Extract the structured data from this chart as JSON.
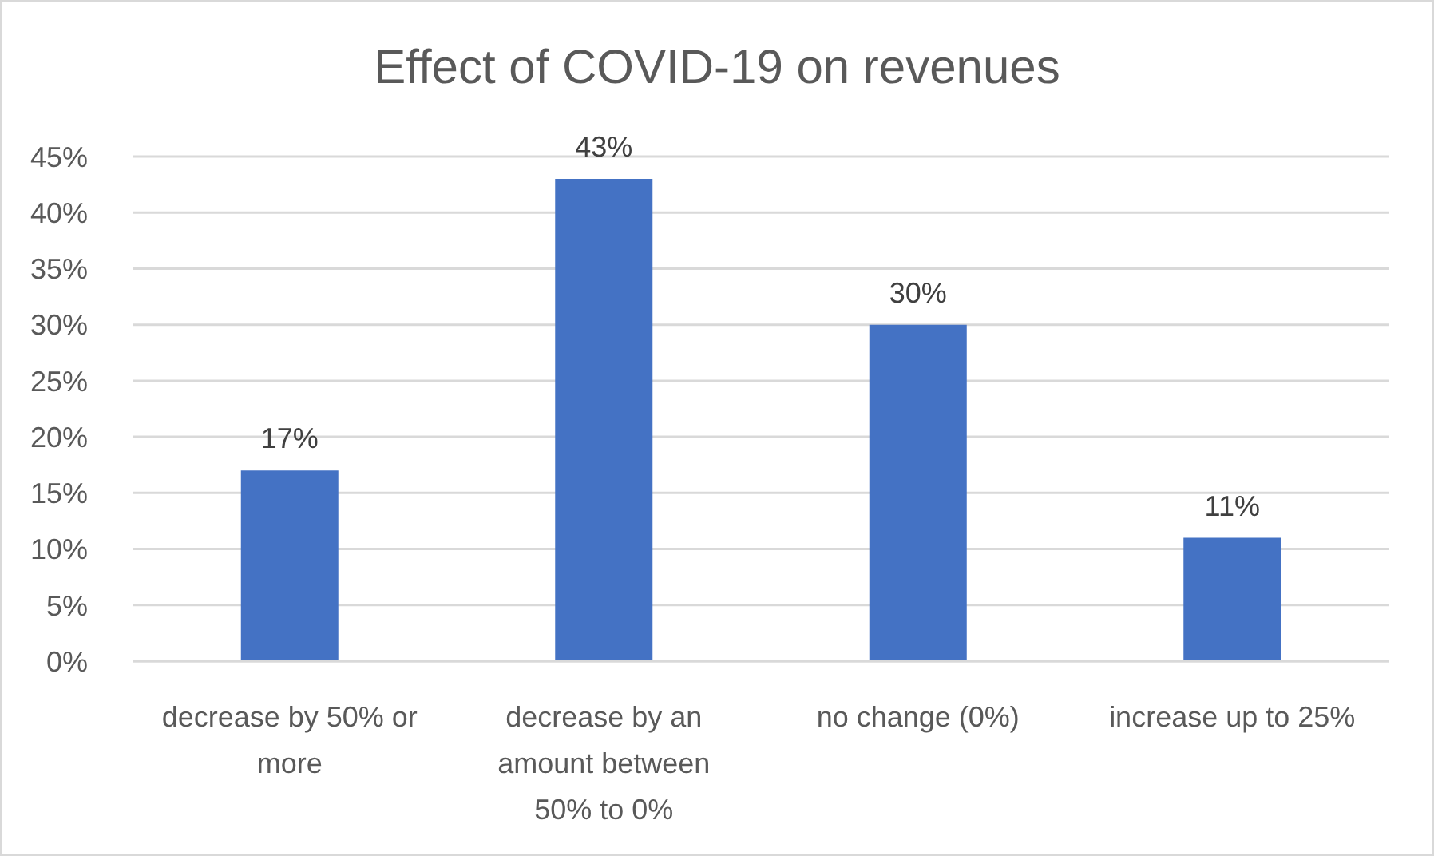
{
  "chart_data": {
    "type": "bar",
    "title": "Effect of COVID-19 on revenues",
    "categories": [
      "decrease by 50% or more",
      "decrease by an amount between 50% to 0%",
      "no change (0%)",
      "increase up to 25%"
    ],
    "values": [
      17,
      43,
      30,
      11
    ],
    "value_labels": [
      "17%",
      "43%",
      "30%",
      "11%"
    ],
    "color": "#4472c4",
    "ylim": [
      0,
      45
    ],
    "yticks": [
      {
        "value": 0,
        "label": "0%"
      },
      {
        "value": 5,
        "label": "5%"
      },
      {
        "value": 10,
        "label": "10%"
      },
      {
        "value": 15,
        "label": "15%"
      },
      {
        "value": 20,
        "label": "20%"
      },
      {
        "value": 25,
        "label": "25%"
      },
      {
        "value": 30,
        "label": "30%"
      },
      {
        "value": 35,
        "label": "35%"
      },
      {
        "value": 40,
        "label": "40%"
      },
      {
        "value": 45,
        "label": "45%"
      }
    ],
    "grid": "y"
  }
}
